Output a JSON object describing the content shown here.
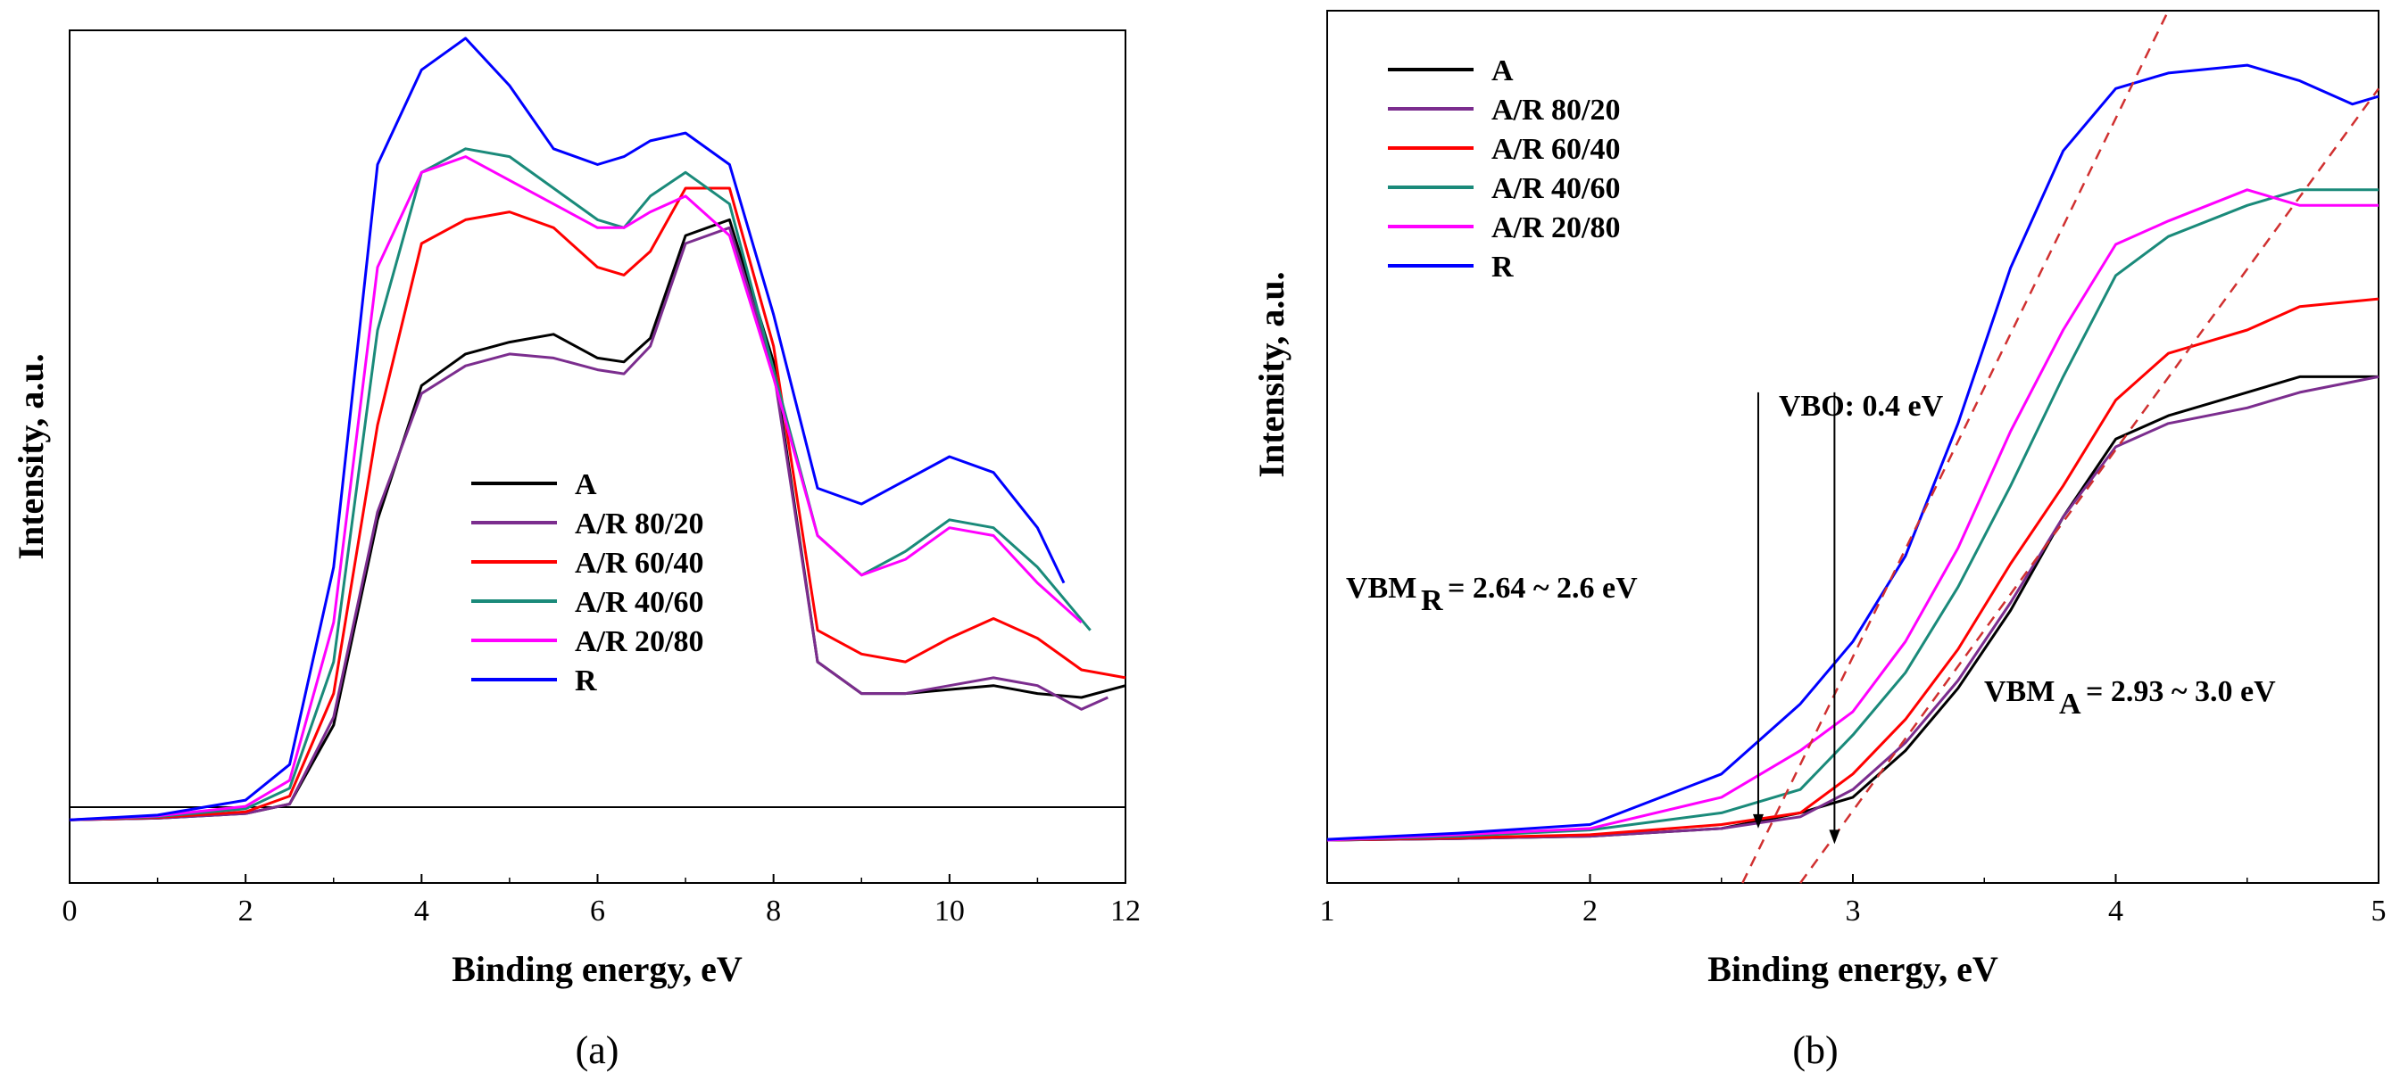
{
  "chart_data": [
    {
      "type": "line",
      "panel_label": "(a)",
      "xlabel": "Binding energy, eV",
      "ylabel": "Intensity, a.u.",
      "xlim": [
        0,
        12
      ],
      "ylim": [
        -0.08,
        1.0
      ],
      "xticks": [
        0,
        2,
        4,
        6,
        8,
        10,
        12
      ],
      "baseline_y": 0,
      "legend_position": "center-right",
      "series": [
        {
          "name": "A",
          "color": "#000000",
          "points": [
            [
              0,
              0
            ],
            [
              1,
              0.002
            ],
            [
              2,
              0.008
            ],
            [
              2.5,
              0.02
            ],
            [
              3,
              0.12
            ],
            [
              3.5,
              0.38
            ],
            [
              4,
              0.55
            ],
            [
              4.5,
              0.59
            ],
            [
              5,
              0.605
            ],
            [
              5.5,
              0.615
            ],
            [
              6,
              0.585
            ],
            [
              6.3,
              0.58
            ],
            [
              6.6,
              0.61
            ],
            [
              7,
              0.74
            ],
            [
              7.5,
              0.76
            ],
            [
              8,
              0.58
            ],
            [
              8.5,
              0.2
            ],
            [
              9,
              0.16
            ],
            [
              9.5,
              0.16
            ],
            [
              10,
              0.165
            ],
            [
              10.5,
              0.17
            ],
            [
              11,
              0.16
            ],
            [
              11.5,
              0.155
            ],
            [
              12,
              0.17
            ]
          ]
        },
        {
          "name": "A/R 80/20",
          "color": "#7b2d8e",
          "points": [
            [
              0,
              0
            ],
            [
              1,
              0.002
            ],
            [
              2,
              0.008
            ],
            [
              2.5,
              0.02
            ],
            [
              3,
              0.13
            ],
            [
              3.5,
              0.39
            ],
            [
              4,
              0.54
            ],
            [
              4.5,
              0.575
            ],
            [
              5,
              0.59
            ],
            [
              5.5,
              0.585
            ],
            [
              6,
              0.57
            ],
            [
              6.3,
              0.565
            ],
            [
              6.6,
              0.6
            ],
            [
              7,
              0.73
            ],
            [
              7.5,
              0.75
            ],
            [
              8,
              0.57
            ],
            [
              8.5,
              0.2
            ],
            [
              9,
              0.16
            ],
            [
              9.5,
              0.16
            ],
            [
              10,
              0.17
            ],
            [
              10.5,
              0.18
            ],
            [
              11,
              0.17
            ],
            [
              11.5,
              0.14
            ],
            [
              11.8,
              0.155
            ]
          ]
        },
        {
          "name": "A/R 60/40",
          "color": "#ff0000",
          "points": [
            [
              0,
              0
            ],
            [
              1,
              0.003
            ],
            [
              2,
              0.01
            ],
            [
              2.5,
              0.03
            ],
            [
              3,
              0.16
            ],
            [
              3.5,
              0.5
            ],
            [
              4,
              0.73
            ],
            [
              4.5,
              0.76
            ],
            [
              5,
              0.77
            ],
            [
              5.5,
              0.75
            ],
            [
              6,
              0.7
            ],
            [
              6.3,
              0.69
            ],
            [
              6.6,
              0.72
            ],
            [
              7,
              0.8
            ],
            [
              7.5,
              0.8
            ],
            [
              8,
              0.6
            ],
            [
              8.5,
              0.24
            ],
            [
              9,
              0.21
            ],
            [
              9.5,
              0.2
            ],
            [
              10,
              0.23
            ],
            [
              10.5,
              0.255
            ],
            [
              11,
              0.23
            ],
            [
              11.5,
              0.19
            ],
            [
              12,
              0.18
            ]
          ]
        },
        {
          "name": "A/R 40/60",
          "color": "#1a8a7a",
          "points": [
            [
              0,
              0
            ],
            [
              1,
              0.004
            ],
            [
              2,
              0.014
            ],
            [
              2.5,
              0.04
            ],
            [
              3,
              0.2
            ],
            [
              3.5,
              0.62
            ],
            [
              4,
              0.82
            ],
            [
              4.5,
              0.85
            ],
            [
              5,
              0.84
            ],
            [
              5.5,
              0.8
            ],
            [
              6,
              0.76
            ],
            [
              6.3,
              0.75
            ],
            [
              6.6,
              0.79
            ],
            [
              7,
              0.82
            ],
            [
              7.5,
              0.78
            ],
            [
              8,
              0.57
            ],
            [
              8.5,
              0.36
            ],
            [
              9,
              0.31
            ],
            [
              9.5,
              0.34
            ],
            [
              10,
              0.38
            ],
            [
              10.5,
              0.37
            ],
            [
              11,
              0.32
            ],
            [
              11.6,
              0.24
            ]
          ]
        },
        {
          "name": "A/R 20/80",
          "color": "#ff00ff",
          "points": [
            [
              0,
              0
            ],
            [
              1,
              0.005
            ],
            [
              2,
              0.017
            ],
            [
              2.5,
              0.05
            ],
            [
              3,
              0.25
            ],
            [
              3.5,
              0.7
            ],
            [
              4,
              0.82
            ],
            [
              4.5,
              0.84
            ],
            [
              5,
              0.81
            ],
            [
              5.5,
              0.78
            ],
            [
              6,
              0.75
            ],
            [
              6.3,
              0.75
            ],
            [
              6.6,
              0.77
            ],
            [
              7,
              0.79
            ],
            [
              7.5,
              0.74
            ],
            [
              8,
              0.56
            ],
            [
              8.5,
              0.36
            ],
            [
              9,
              0.31
            ],
            [
              9.5,
              0.33
            ],
            [
              10,
              0.37
            ],
            [
              10.5,
              0.36
            ],
            [
              11,
              0.3
            ],
            [
              11.5,
              0.25
            ]
          ]
        },
        {
          "name": "R",
          "color": "#0000ff",
          "points": [
            [
              0,
              0
            ],
            [
              1,
              0.006
            ],
            [
              2,
              0.025
            ],
            [
              2.5,
              0.07
            ],
            [
              3,
              0.32
            ],
            [
              3.5,
              0.83
            ],
            [
              4,
              0.95
            ],
            [
              4.5,
              0.99
            ],
            [
              5,
              0.93
            ],
            [
              5.5,
              0.85
            ],
            [
              6,
              0.83
            ],
            [
              6.3,
              0.84
            ],
            [
              6.6,
              0.86
            ],
            [
              7,
              0.87
            ],
            [
              7.5,
              0.83
            ],
            [
              8,
              0.64
            ],
            [
              8.5,
              0.42
            ],
            [
              9,
              0.4
            ],
            [
              9.5,
              0.43
            ],
            [
              10,
              0.46
            ],
            [
              10.5,
              0.44
            ],
            [
              11,
              0.37
            ],
            [
              11.3,
              0.3
            ]
          ]
        }
      ]
    },
    {
      "type": "line",
      "panel_label": "(b)",
      "xlabel": "Binding energy, eV",
      "ylabel": "Intensity, a.u.",
      "xlim": [
        1,
        5
      ],
      "ylim": [
        -0.05,
        1.07
      ],
      "xticks": [
        1,
        2,
        3,
        4,
        5
      ],
      "legend_position": "top-left",
      "series": [
        {
          "name": "A",
          "color": "#000000",
          "points": [
            [
              1,
              0.005
            ],
            [
              1.5,
              0.007
            ],
            [
              2,
              0.01
            ],
            [
              2.5,
              0.02
            ],
            [
              2.8,
              0.04
            ],
            [
              3,
              0.06
            ],
            [
              3.2,
              0.12
            ],
            [
              3.4,
              0.2
            ],
            [
              3.6,
              0.3
            ],
            [
              3.8,
              0.42
            ],
            [
              4,
              0.52
            ],
            [
              4.2,
              0.55
            ],
            [
              4.5,
              0.58
            ],
            [
              4.7,
              0.6
            ],
            [
              5,
              0.6
            ]
          ]
        },
        {
          "name": "A/R 80/20",
          "color": "#7b2d8e",
          "points": [
            [
              1,
              0.005
            ],
            [
              1.5,
              0.007
            ],
            [
              2,
              0.01
            ],
            [
              2.5,
              0.02
            ],
            [
              2.8,
              0.035
            ],
            [
              3,
              0.07
            ],
            [
              3.2,
              0.13
            ],
            [
              3.4,
              0.21
            ],
            [
              3.6,
              0.31
            ],
            [
              3.8,
              0.42
            ],
            [
              4,
              0.51
            ],
            [
              4.2,
              0.54
            ],
            [
              4.5,
              0.56
            ],
            [
              4.7,
              0.58
            ],
            [
              5,
              0.6
            ]
          ]
        },
        {
          "name": "A/R 60/40",
          "color": "#ff0000",
          "points": [
            [
              1,
              0.005
            ],
            [
              1.5,
              0.008
            ],
            [
              2,
              0.012
            ],
            [
              2.5,
              0.025
            ],
            [
              2.8,
              0.04
            ],
            [
              3,
              0.09
            ],
            [
              3.2,
              0.16
            ],
            [
              3.4,
              0.25
            ],
            [
              3.6,
              0.36
            ],
            [
              3.8,
              0.46
            ],
            [
              4,
              0.57
            ],
            [
              4.2,
              0.63
            ],
            [
              4.5,
              0.66
            ],
            [
              4.7,
              0.69
            ],
            [
              5,
              0.7
            ]
          ]
        },
        {
          "name": "A/R 40/60",
          "color": "#1a8a7a",
          "points": [
            [
              1,
              0.005
            ],
            [
              1.5,
              0.01
            ],
            [
              2,
              0.018
            ],
            [
              2.5,
              0.04
            ],
            [
              2.8,
              0.07
            ],
            [
              3,
              0.14
            ],
            [
              3.2,
              0.22
            ],
            [
              3.4,
              0.33
            ],
            [
              3.6,
              0.46
            ],
            [
              3.8,
              0.6
            ],
            [
              4,
              0.73
            ],
            [
              4.2,
              0.78
            ],
            [
              4.5,
              0.82
            ],
            [
              4.7,
              0.84
            ],
            [
              5,
              0.84
            ]
          ]
        },
        {
          "name": "A/R 20/80",
          "color": "#ff00ff",
          "points": [
            [
              1,
              0.005
            ],
            [
              1.5,
              0.012
            ],
            [
              2,
              0.02
            ],
            [
              2.5,
              0.06
            ],
            [
              2.8,
              0.12
            ],
            [
              3,
              0.17
            ],
            [
              3.2,
              0.26
            ],
            [
              3.4,
              0.38
            ],
            [
              3.6,
              0.53
            ],
            [
              3.8,
              0.66
            ],
            [
              4,
              0.77
            ],
            [
              4.2,
              0.8
            ],
            [
              4.5,
              0.84
            ],
            [
              4.7,
              0.82
            ],
            [
              5,
              0.82
            ]
          ]
        },
        {
          "name": "R",
          "color": "#0000ff",
          "points": [
            [
              1,
              0.006
            ],
            [
              1.5,
              0.014
            ],
            [
              2,
              0.025
            ],
            [
              2.5,
              0.09
            ],
            [
              2.8,
              0.18
            ],
            [
              3,
              0.26
            ],
            [
              3.2,
              0.37
            ],
            [
              3.4,
              0.54
            ],
            [
              3.6,
              0.74
            ],
            [
              3.8,
              0.89
            ],
            [
              4,
              0.97
            ],
            [
              4.2,
              0.99
            ],
            [
              4.5,
              1.0
            ],
            [
              4.7,
              0.98
            ],
            [
              4.9,
              0.95
            ],
            [
              5,
              0.96
            ]
          ]
        }
      ],
      "fit_lines": [
        {
          "name": "tangent-R",
          "color": "#d03030",
          "points": [
            [
              2.58,
              -0.05
            ],
            [
              4.2,
              1.07
            ]
          ]
        },
        {
          "name": "tangent-A",
          "color": "#d03030",
          "points": [
            [
              2.8,
              -0.05
            ],
            [
              5,
              0.97
            ]
          ]
        }
      ],
      "arrows": [
        {
          "name": "VBM R arrow",
          "x": 2.64,
          "y_from": 0.58,
          "y_to": 0.02
        },
        {
          "name": "VBM A arrow",
          "x": 2.93,
          "y_from": 0.58,
          "y_to": 0.0
        }
      ],
      "annotations": {
        "vbo": "VBO: 0.4 eV",
        "vbm_r_prefix": "VBM",
        "vbm_r_sub": "R",
        "vbm_r_value": "= 2.64 ~ 2.6 eV",
        "vbm_a_prefix": "VBM",
        "vbm_a_sub": "A",
        "vbm_a_value": "= 2.93 ~ 3.0 eV"
      }
    }
  ]
}
